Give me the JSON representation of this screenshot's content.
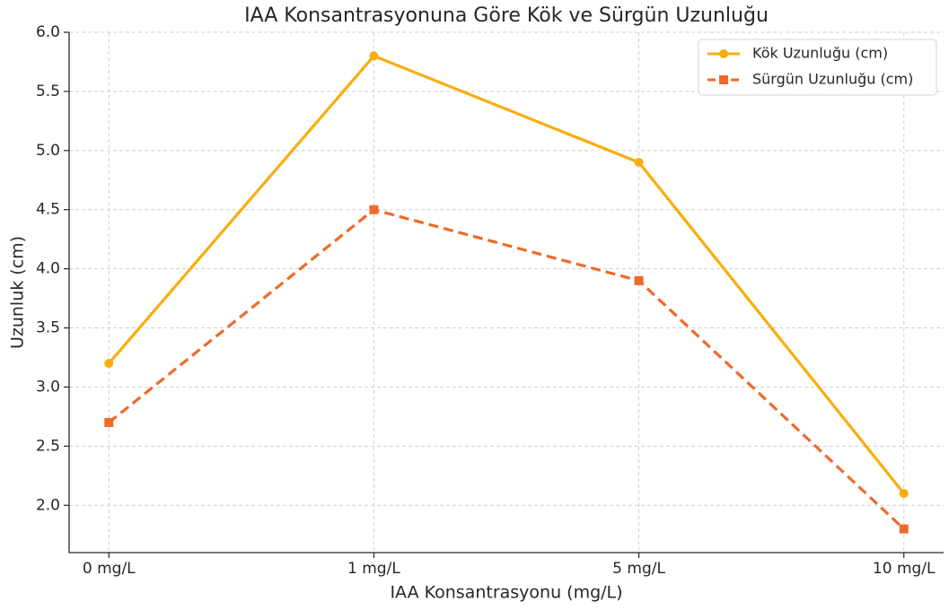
{
  "chart_data": {
    "type": "line",
    "title": "IAA Konsantrasyonuna Göre Kök ve Sürgün Uzunluğu",
    "xlabel": "IAA Konsantrasyonu (mg/L)",
    "ylabel": "Uzunluk (cm)",
    "categories": [
      "0 mg/L",
      "1 mg/L",
      "5 mg/L",
      "10 mg/L"
    ],
    "series": [
      {
        "name": "Kök Uzunluğu (cm)",
        "color": "#f9ad0e",
        "marker": "circle",
        "linestyle": "solid",
        "values": [
          3.2,
          5.8,
          4.9,
          2.1
        ]
      },
      {
        "name": "Sürgün Uzunluğu (cm)",
        "color": "#f0692a",
        "marker": "square",
        "linestyle": "dashed",
        "values": [
          2.7,
          4.5,
          3.9,
          1.8
        ]
      }
    ],
    "ylim": [
      1.6,
      6.0
    ],
    "yticks": [
      {
        "value": 2,
        "label": "2.0"
      },
      2.5,
      {
        "value": 3,
        "label": "3.0"
      },
      3.5,
      {
        "value": 4,
        "label": "4.0"
      },
      4.5,
      {
        "value": 5,
        "label": "5.0"
      },
      5.5,
      {
        "value": 6,
        "label": "6.0"
      }
    ],
    "grid": true,
    "legend": "upper right"
  }
}
